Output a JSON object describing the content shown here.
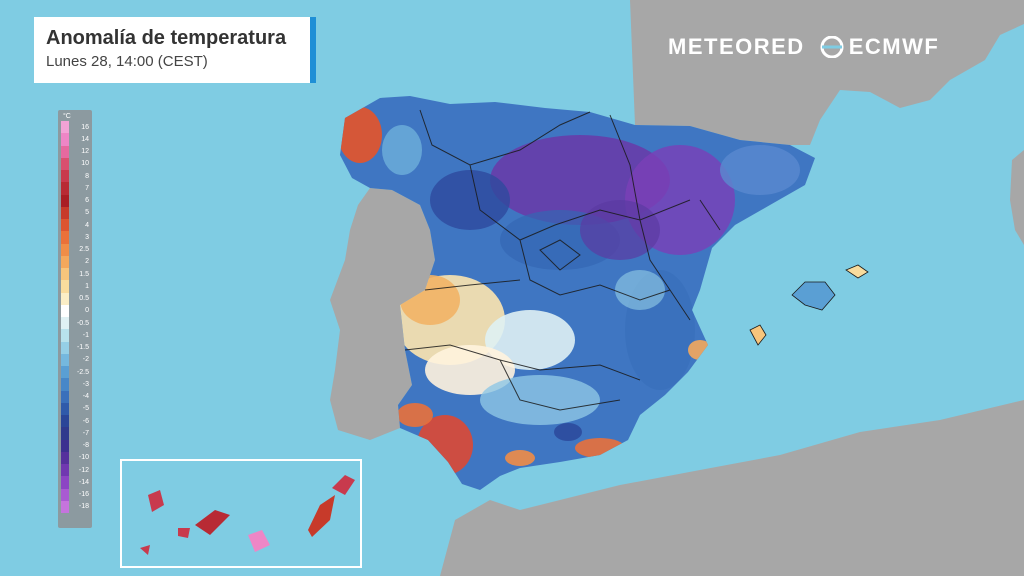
{
  "header": {
    "title": "Anomalía de temperatura",
    "subtitle": "Lunes 28, 14:00 (CEST)"
  },
  "logos": {
    "meteored": "METEORED",
    "ecmwf": "ECMWF"
  },
  "legend": {
    "unit": "°C",
    "stops": [
      {
        "label": "16",
        "color": "#f2a3d6"
      },
      {
        "label": "14",
        "color": "#ee86c6"
      },
      {
        "label": "12",
        "color": "#e6699f"
      },
      {
        "label": "10",
        "color": "#d9506f"
      },
      {
        "label": "8",
        "color": "#c83a4d"
      },
      {
        "label": "7",
        "color": "#b82a34"
      },
      {
        "label": "6",
        "color": "#a91d24"
      },
      {
        "label": "5",
        "color": "#c73a2a"
      },
      {
        "label": "4",
        "color": "#dd5530"
      },
      {
        "label": "3",
        "color": "#ea7139"
      },
      {
        "label": "2.5",
        "color": "#f08d47"
      },
      {
        "label": "2",
        "color": "#f4a85c"
      },
      {
        "label": "1.5",
        "color": "#f7c57c"
      },
      {
        "label": "1",
        "color": "#f9dc9d"
      },
      {
        "label": "0.5",
        "color": "#fbeec6"
      },
      {
        "label": "0",
        "color": "#ffffff"
      },
      {
        "label": "-0.5",
        "color": "#dff1f4"
      },
      {
        "label": "-1",
        "color": "#b8e2ec"
      },
      {
        "label": "-1.5",
        "color": "#95cfe6"
      },
      {
        "label": "-2",
        "color": "#75b8de"
      },
      {
        "label": "-2.5",
        "color": "#5a9fd4"
      },
      {
        "label": "-3",
        "color": "#4787c8"
      },
      {
        "label": "-4",
        "color": "#3a70bb"
      },
      {
        "label": "-5",
        "color": "#2f5aaa"
      },
      {
        "label": "-6",
        "color": "#2a4698"
      },
      {
        "label": "-7",
        "color": "#2f3a8d"
      },
      {
        "label": "-8",
        "color": "#3c3190"
      },
      {
        "label": "-10",
        "color": "#55319c"
      },
      {
        "label": "-12",
        "color": "#7038b0"
      },
      {
        "label": "-14",
        "color": "#8c45c4"
      },
      {
        "label": "-16",
        "color": "#a95ad2"
      },
      {
        "label": "-18",
        "color": "#c574dd"
      }
    ]
  },
  "colors": {
    "sea": "#7fcce3",
    "land_outside": "#a7a7a7",
    "title_accent": "#1f8fd6"
  }
}
